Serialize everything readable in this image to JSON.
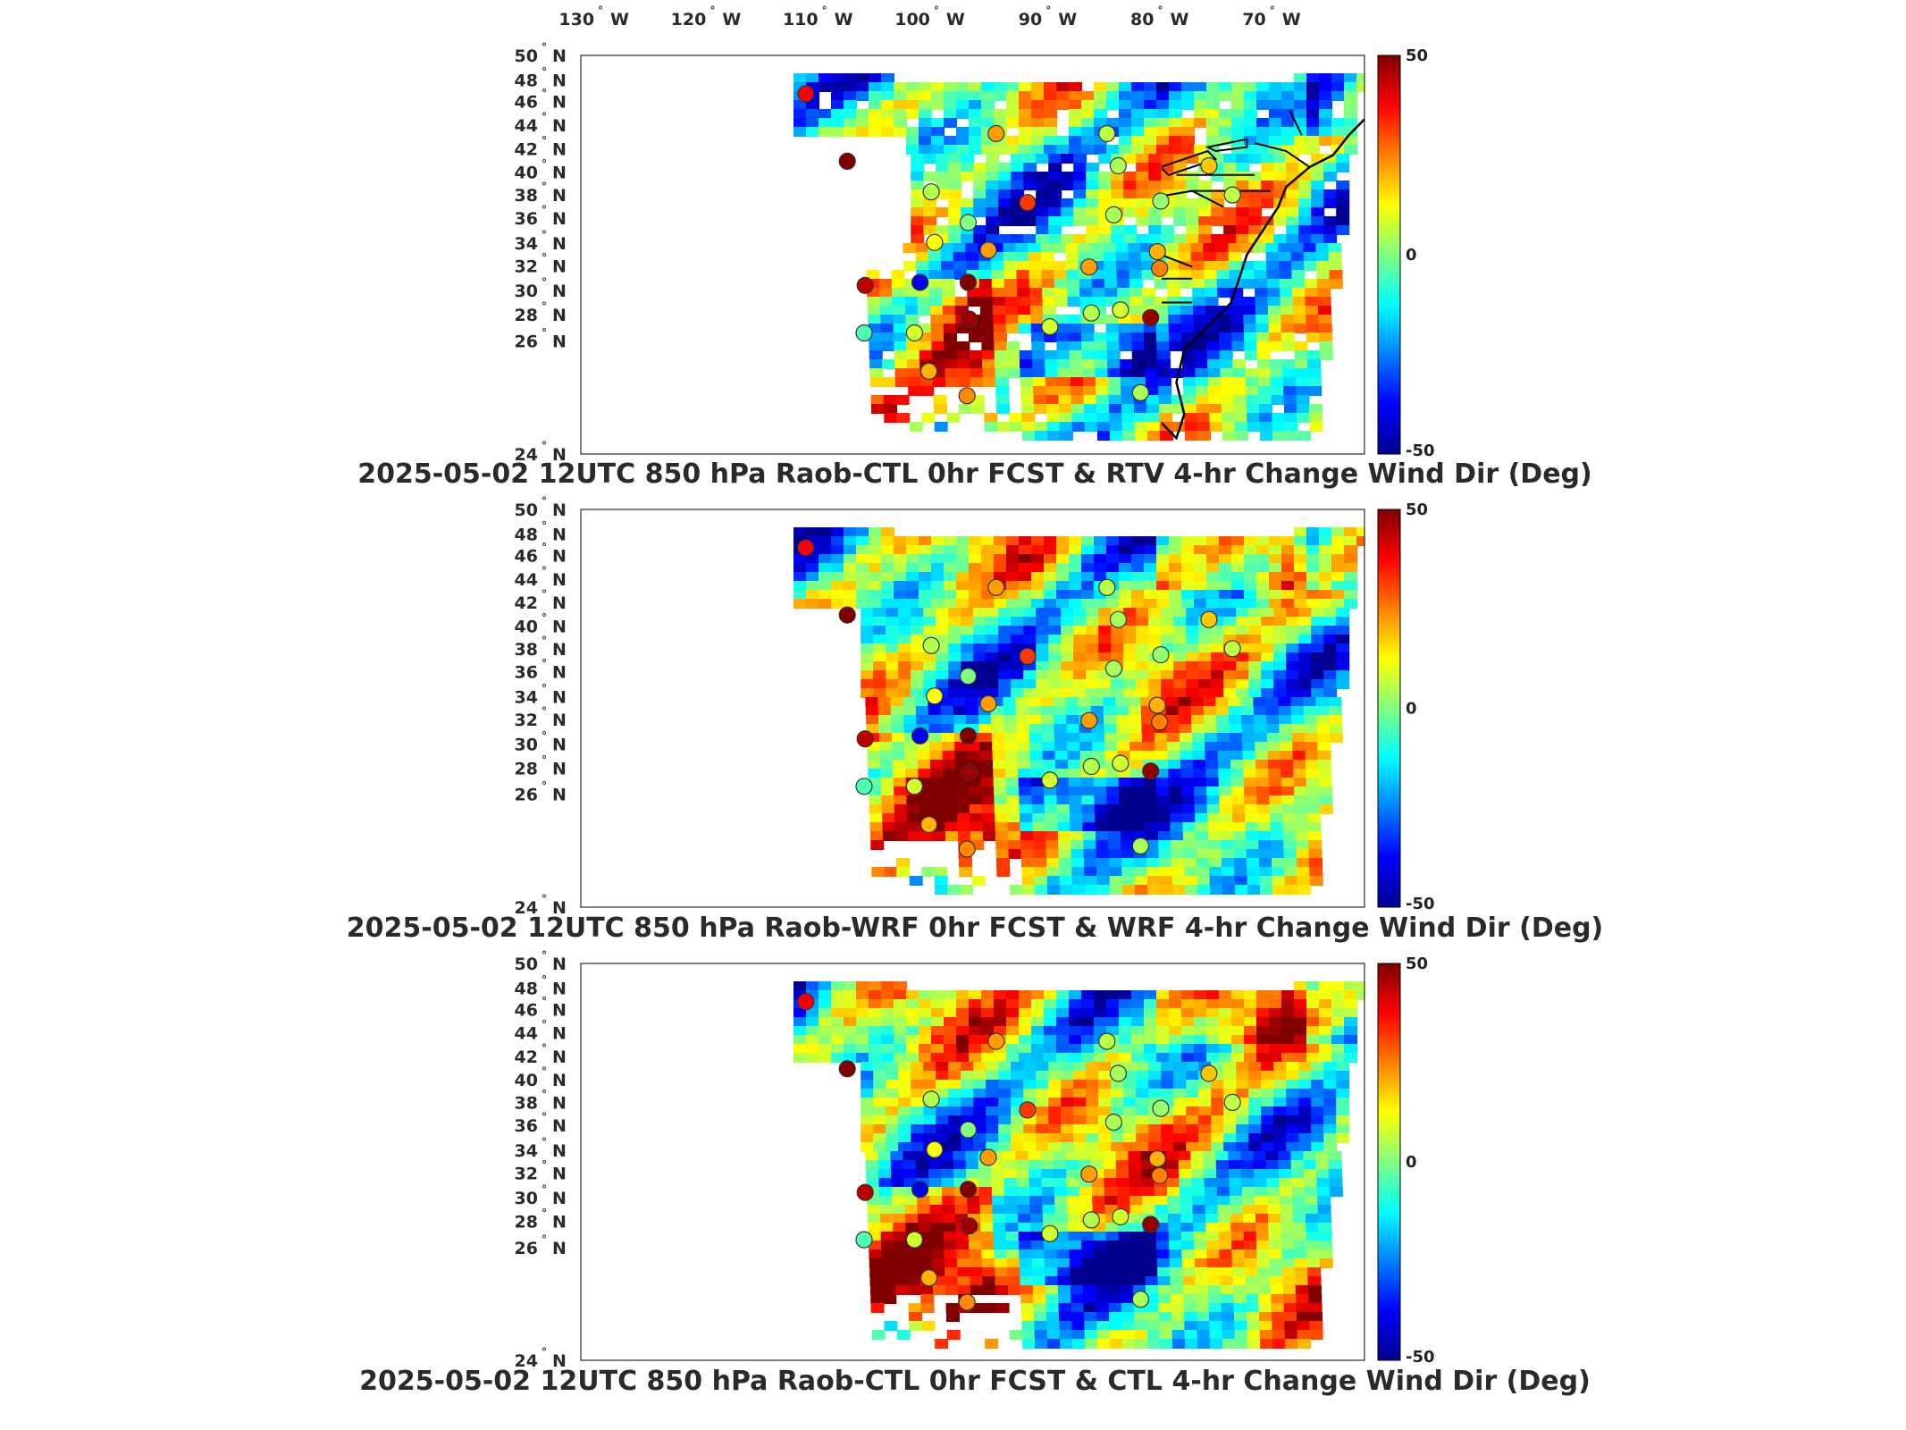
{
  "top_lon_labels": [
    "130",
    "120",
    "110",
    "100",
    "90",
    "80",
    "70"
  ],
  "lon_suffix": "W",
  "lat_labels": [
    "50",
    "48",
    "46",
    "44",
    "42",
    "40",
    "38",
    "36",
    "34",
    "32",
    "30",
    "28",
    "26",
    "24"
  ],
  "lat_suffix": "N",
  "colorbar": {
    "max": "50",
    "mid": "0",
    "min": "-50",
    "colors": [
      "#00008f",
      "#0000ff",
      "#0080ff",
      "#00ffff",
      "#80ff80",
      "#ffff00",
      "#ff8000",
      "#ff0000",
      "#800000"
    ]
  },
  "panels": [
    {
      "title": "2025-05-02 12UTC 850 hPa Raob-CTL 0hr FCST & RTV 4-hr Change Wind Dir (Deg)",
      "variant": "rtv"
    },
    {
      "title": "2025-05-02 12UTC 850 hPa Raob-WRF 0hr FCST & WRF 4-hr Change Wind Dir (Deg)",
      "variant": "wrf"
    },
    {
      "title": "2025-05-02 12UTC 850 hPa Raob-CTL 0hr FCST & CTL 4-hr Change Wind Dir (Deg)",
      "variant": "ctl"
    }
  ],
  "raob_stations": [
    {
      "lon": -111.9,
      "lat": 47.5,
      "value": 38,
      "panels": [
        1,
        2,
        3
      ]
    },
    {
      "lon": -108.2,
      "lat": 43.1,
      "value": 50,
      "panels": [
        1,
        2,
        3
      ]
    },
    {
      "lon": -100.7,
      "lat": 41.1,
      "value": 5,
      "panels": [
        1,
        2,
        3
      ]
    },
    {
      "lon": -100.4,
      "lat": 37.8,
      "value": 12,
      "panels": [
        1,
        2,
        3
      ]
    },
    {
      "lon": -97.4,
      "lat": 39.1,
      "value": 0,
      "panels": [
        1,
        2,
        3
      ]
    },
    {
      "lon": -94.9,
      "lat": 44.9,
      "value": 22,
      "panels": [
        1,
        2,
        3
      ]
    },
    {
      "lon": -95.6,
      "lat": 37.3,
      "value": 22,
      "panels": [
        1,
        2,
        3
      ]
    },
    {
      "lon": -92.1,
      "lat": 40.4,
      "value": 32,
      "panels": [
        1,
        2,
        3
      ]
    },
    {
      "lon": -85.0,
      "lat": 44.9,
      "value": 6,
      "panels": [
        1,
        2,
        3
      ]
    },
    {
      "lon": -84.0,
      "lat": 42.8,
      "value": 4,
      "panels": [
        1,
        2,
        3
      ]
    },
    {
      "lon": -84.4,
      "lat": 39.6,
      "value": 4,
      "panels": [
        1,
        2,
        3
      ]
    },
    {
      "lon": -80.2,
      "lat": 40.5,
      "value": 2,
      "panels": [
        1,
        2,
        3
      ]
    },
    {
      "lon": -80.5,
      "lat": 37.2,
      "value": 20,
      "panels": [
        1,
        2,
        3
      ]
    },
    {
      "lon": -80.3,
      "lat": 36.1,
      "value": 25,
      "panels": [
        1,
        2,
        3
      ]
    },
    {
      "lon": -75.9,
      "lat": 42.8,
      "value": 18,
      "panels": [
        1,
        2,
        3
      ]
    },
    {
      "lon": -73.8,
      "lat": 40.9,
      "value": 6,
      "panels": [
        1,
        2,
        3
      ]
    },
    {
      "lon": -86.6,
      "lat": 36.2,
      "value": 22,
      "panels": [
        1,
        2,
        3
      ]
    },
    {
      "lon": -86.4,
      "lat": 33.2,
      "value": 5,
      "panels": [
        1,
        2,
        3
      ]
    },
    {
      "lon": -83.8,
      "lat": 33.4,
      "value": 8,
      "panels": [
        1,
        2,
        3
      ]
    },
    {
      "lon": -81.1,
      "lat": 32.9,
      "value": 48,
      "panels": [
        1,
        2,
        3
      ]
    },
    {
      "lon": -82.0,
      "lat": 28.0,
      "value": 4,
      "panels": [
        1,
        2,
        3
      ]
    },
    {
      "lon": -90.1,
      "lat": 32.3,
      "value": 8,
      "panels": [
        1,
        2,
        3
      ]
    },
    {
      "lon": -97.4,
      "lat": 35.2,
      "value": 50,
      "panels": [
        1,
        2,
        3
      ]
    },
    {
      "lon": -101.7,
      "lat": 35.2,
      "value": -40,
      "panels": [
        1,
        2,
        3
      ]
    },
    {
      "lon": -106.6,
      "lat": 35.0,
      "value": 44,
      "panels": [
        1,
        2,
        3
      ]
    },
    {
      "lon": -97.3,
      "lat": 32.8,
      "value": 47,
      "panels": [
        1,
        2,
        3
      ]
    },
    {
      "lon": -102.2,
      "lat": 31.9,
      "value": 8,
      "panels": [
        1,
        2,
        3
      ]
    },
    {
      "lon": -106.7,
      "lat": 31.9,
      "value": -5,
      "panels": [
        1,
        2,
        3
      ]
    },
    {
      "lon": -97.5,
      "lat": 27.8,
      "value": 24,
      "panels": [
        1,
        2,
        3
      ]
    },
    {
      "lon": -100.9,
      "lat": 29.4,
      "value": 20,
      "panels": [
        1,
        2,
        3
      ]
    }
  ]
}
